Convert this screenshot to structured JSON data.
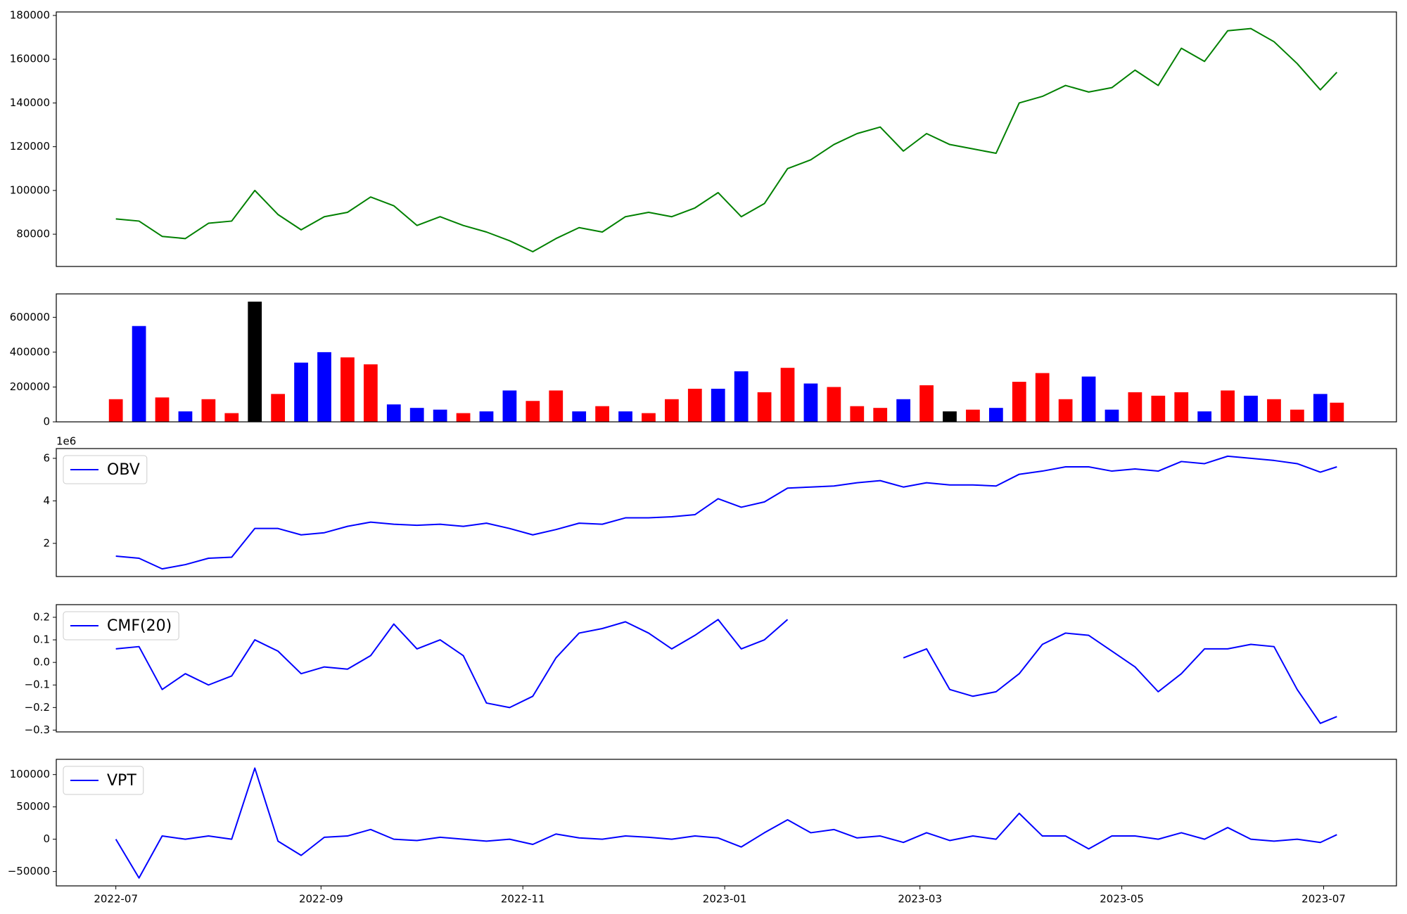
{
  "chart_data": [
    {
      "type": "line",
      "x": [
        "2022-07-01",
        "2022-07-08",
        "2022-07-15",
        "2022-07-22",
        "2022-07-29",
        "2022-08-05",
        "2022-08-12",
        "2022-08-19",
        "2022-08-26",
        "2022-09-02",
        "2022-09-09",
        "2022-09-16",
        "2022-09-23",
        "2022-09-30",
        "2022-10-07",
        "2022-10-14",
        "2022-10-21",
        "2022-10-28",
        "2022-11-04",
        "2022-11-11",
        "2022-11-18",
        "2022-11-25",
        "2022-12-02",
        "2022-12-09",
        "2022-12-16",
        "2022-12-23",
        "2022-12-30",
        "2023-01-06",
        "2023-01-13",
        "2023-01-20",
        "2023-01-27",
        "2023-02-03",
        "2023-02-10",
        "2023-02-17",
        "2023-02-24",
        "2023-03-03",
        "2023-03-10",
        "2023-03-17",
        "2023-03-24",
        "2023-03-31",
        "2023-04-07",
        "2023-04-14",
        "2023-04-21",
        "2023-04-28",
        "2023-05-05",
        "2023-05-12",
        "2023-05-19",
        "2023-05-26",
        "2023-06-02",
        "2023-06-09",
        "2023-06-16",
        "2023-06-23",
        "2023-06-30",
        "2023-07-05"
      ],
      "values": [
        87000,
        86000,
        79000,
        78000,
        85000,
        86000,
        100000,
        89000,
        82000,
        88000,
        90000,
        97000,
        93000,
        84000,
        88000,
        84000,
        81000,
        77000,
        72000,
        78000,
        83000,
        81000,
        88000,
        90000,
        88000,
        92000,
        99000,
        88000,
        94000,
        110000,
        114000,
        121000,
        126000,
        129000,
        118000,
        126000,
        121000,
        119000,
        117000,
        140000,
        143000,
        148000,
        145000,
        147000,
        155000,
        148000,
        165000,
        159000,
        173000,
        174000,
        168000,
        158000,
        146000,
        154000
      ],
      "color": "#008000",
      "xlim": [
        "2022-06-13",
        "2023-07-23"
      ],
      "ylim": [
        65250,
        181600
      ],
      "yticks": [
        80000,
        100000,
        120000,
        140000,
        160000,
        180000
      ]
    },
    {
      "type": "bar",
      "x": [
        "2022-07-01",
        "2022-07-08",
        "2022-07-15",
        "2022-07-22",
        "2022-07-29",
        "2022-08-05",
        "2022-08-12",
        "2022-08-19",
        "2022-08-26",
        "2022-09-02",
        "2022-09-09",
        "2022-09-16",
        "2022-09-23",
        "2022-09-30",
        "2022-10-07",
        "2022-10-14",
        "2022-10-21",
        "2022-10-28",
        "2022-11-04",
        "2022-11-11",
        "2022-11-18",
        "2022-11-25",
        "2022-12-02",
        "2022-12-09",
        "2022-12-16",
        "2022-12-23",
        "2022-12-30",
        "2023-01-06",
        "2023-01-13",
        "2023-01-20",
        "2023-01-27",
        "2023-02-03",
        "2023-02-10",
        "2023-02-17",
        "2023-02-24",
        "2023-03-03",
        "2023-03-10",
        "2023-03-17",
        "2023-03-24",
        "2023-03-31",
        "2023-04-07",
        "2023-04-14",
        "2023-04-21",
        "2023-04-28",
        "2023-05-05",
        "2023-05-12",
        "2023-05-19",
        "2023-05-26",
        "2023-06-02",
        "2023-06-09",
        "2023-06-16",
        "2023-06-23",
        "2023-06-30",
        "2023-07-05"
      ],
      "values": [
        130000,
        550000,
        140000,
        60000,
        130000,
        50000,
        690000,
        160000,
        340000,
        400000,
        370000,
        330000,
        100000,
        80000,
        70000,
        50000,
        60000,
        180000,
        120000,
        180000,
        60000,
        90000,
        60000,
        50000,
        130000,
        190000,
        190000,
        290000,
        170000,
        310000,
        220000,
        200000,
        90000,
        80000,
        130000,
        210000,
        60000,
        70000,
        80000,
        230000,
        280000,
        130000,
        260000,
        70000,
        170000,
        150000,
        170000,
        60000,
        180000,
        150000,
        130000,
        70000,
        160000,
        110000
      ],
      "colors": [
        "#ff0000",
        "#0000ff",
        "#ff0000",
        "#0000ff",
        "#ff0000",
        "#ff0000",
        "#000000",
        "#ff0000",
        "#0000ff",
        "#0000ff",
        "#ff0000",
        "#ff0000",
        "#0000ff",
        "#0000ff",
        "#0000ff",
        "#ff0000",
        "#0000ff",
        "#0000ff",
        "#ff0000",
        "#ff0000",
        "#0000ff",
        "#ff0000",
        "#0000ff",
        "#ff0000",
        "#ff0000",
        "#ff0000",
        "#0000ff",
        "#0000ff",
        "#ff0000",
        "#ff0000",
        "#0000ff",
        "#ff0000",
        "#ff0000",
        "#ff0000",
        "#0000ff",
        "#ff0000",
        "#000000",
        "#ff0000",
        "#0000ff",
        "#ff0000",
        "#ff0000",
        "#ff0000",
        "#0000ff",
        "#0000ff",
        "#ff0000",
        "#ff0000",
        "#ff0000",
        "#0000ff",
        "#ff0000",
        "#0000ff",
        "#ff0000",
        "#ff0000",
        "#0000ff",
        "#ff0000"
      ],
      "xlim": [
        "2022-06-13",
        "2023-07-23"
      ],
      "ylim": [
        0,
        734500
      ],
      "yticks": [
        0,
        200000,
        400000,
        600000
      ]
    },
    {
      "type": "line",
      "x": [
        "2022-07-01",
        "2022-07-08",
        "2022-07-15",
        "2022-07-22",
        "2022-07-29",
        "2022-08-05",
        "2022-08-12",
        "2022-08-19",
        "2022-08-26",
        "2022-09-02",
        "2022-09-09",
        "2022-09-16",
        "2022-09-23",
        "2022-09-30",
        "2022-10-07",
        "2022-10-14",
        "2022-10-21",
        "2022-10-28",
        "2022-11-04",
        "2022-11-11",
        "2022-11-18",
        "2022-11-25",
        "2022-12-02",
        "2022-12-09",
        "2022-12-16",
        "2022-12-23",
        "2022-12-30",
        "2023-01-06",
        "2023-01-13",
        "2023-01-20",
        "2023-01-27",
        "2023-02-03",
        "2023-02-10",
        "2023-02-17",
        "2023-02-24",
        "2023-03-03",
        "2023-03-10",
        "2023-03-17",
        "2023-03-24",
        "2023-03-31",
        "2023-04-07",
        "2023-04-14",
        "2023-04-21",
        "2023-04-28",
        "2023-05-05",
        "2023-05-12",
        "2023-05-19",
        "2023-05-26",
        "2023-06-02",
        "2023-06-09",
        "2023-06-16",
        "2023-06-23",
        "2023-06-30",
        "2023-07-05"
      ],
      "series": [
        {
          "name": "OBV",
          "color": "#0000ff",
          "values": [
            1400000,
            1300000,
            800000,
            1000000,
            1300000,
            1350000,
            2700000,
            2700000,
            2400000,
            2500000,
            2800000,
            3000000,
            2900000,
            2850000,
            2900000,
            2800000,
            2950000,
            2700000,
            2400000,
            2650000,
            2950000,
            2900000,
            3200000,
            3200000,
            3250000,
            3350000,
            4100000,
            3700000,
            3950000,
            4600000,
            4650000,
            4700000,
            4850000,
            4950000,
            4650000,
            4850000,
            4750000,
            4750000,
            4700000,
            5250000,
            5400000,
            5600000,
            5600000,
            5400000,
            5500000,
            5400000,
            5850000,
            5750000,
            6100000,
            6000000,
            5900000,
            5750000,
            5350000,
            5600000
          ]
        }
      ],
      "y_offset_label": "1e6",
      "legend": "upper left",
      "xlim": [
        "2022-06-13",
        "2023-07-23"
      ],
      "ylim": [
        440000,
        6460000
      ],
      "yticks": [
        {
          "value": 2000000,
          "label": "2"
        },
        {
          "value": 4000000,
          "label": "4"
        },
        {
          "value": 6000000,
          "label": "6"
        }
      ]
    },
    {
      "type": "line",
      "x": [
        "2022-07-01",
        "2022-07-08",
        "2022-07-15",
        "2022-07-22",
        "2022-07-29",
        "2022-08-05",
        "2022-08-12",
        "2022-08-19",
        "2022-08-26",
        "2022-09-02",
        "2022-09-09",
        "2022-09-16",
        "2022-09-23",
        "2022-09-30",
        "2022-10-07",
        "2022-10-14",
        "2022-10-21",
        "2022-10-28",
        "2022-11-04",
        "2022-11-11",
        "2022-11-18",
        "2022-11-25",
        "2022-12-02",
        "2022-12-09",
        "2022-12-16",
        "2022-12-23",
        "2022-12-30",
        "2023-01-06",
        "2023-01-13",
        "2023-01-20",
        "2023-01-27",
        "2023-02-03",
        "2023-02-10",
        "2023-02-17",
        "2023-02-24",
        "2023-03-03",
        "2023-03-10",
        "2023-03-17",
        "2023-03-24",
        "2023-03-31",
        "2023-04-07",
        "2023-04-14",
        "2023-04-21",
        "2023-04-28",
        "2023-05-05",
        "2023-05-12",
        "2023-05-19",
        "2023-05-26",
        "2023-06-02",
        "2023-06-09",
        "2023-06-16",
        "2023-06-23",
        "2023-06-30",
        "2023-07-05"
      ],
      "series": [
        {
          "name": "CMF(20)",
          "color": "#0000ff",
          "values": [
            0.06,
            0.07,
            -0.12,
            -0.05,
            -0.1,
            -0.06,
            0.1,
            0.05,
            -0.05,
            -0.02,
            -0.03,
            0.03,
            0.17,
            0.06,
            0.1,
            0.03,
            -0.18,
            -0.2,
            -0.15,
            0.02,
            0.13,
            0.15,
            0.18,
            0.13,
            0.06,
            0.12,
            0.19,
            0.06,
            0.1,
            0.19,
            null,
            null,
            null,
            null,
            0.02,
            0.06,
            -0.12,
            -0.15,
            -0.13,
            -0.05,
            0.08,
            0.13,
            0.12,
            0.05,
            -0.02,
            -0.13,
            -0.05,
            0.06,
            0.06,
            0.08,
            0.07,
            -0.12,
            -0.27,
            -0.24
          ]
        }
      ],
      "legend": "upper left",
      "xlim": [
        "2022-06-13",
        "2023-07-23"
      ],
      "ylim": [
        -0.308,
        0.256
      ],
      "yticks": [
        {
          "value": -0.3,
          "label": "−0.3"
        },
        {
          "value": -0.2,
          "label": "−0.2"
        },
        {
          "value": -0.1,
          "label": "−0.1"
        },
        {
          "value": 0,
          "label": "0.0"
        },
        0.1,
        0.2
      ]
    },
    {
      "type": "line",
      "x": [
        "2022-07-01",
        "2022-07-08",
        "2022-07-15",
        "2022-07-22",
        "2022-07-29",
        "2022-08-05",
        "2022-08-12",
        "2022-08-19",
        "2022-08-26",
        "2022-09-02",
        "2022-09-09",
        "2022-09-16",
        "2022-09-23",
        "2022-09-30",
        "2022-10-07",
        "2022-10-14",
        "2022-10-21",
        "2022-10-28",
        "2022-11-04",
        "2022-11-11",
        "2022-11-18",
        "2022-11-25",
        "2022-12-02",
        "2022-12-09",
        "2022-12-16",
        "2022-12-23",
        "2022-12-30",
        "2023-01-06",
        "2023-01-13",
        "2023-01-20",
        "2023-01-27",
        "2023-02-03",
        "2023-02-10",
        "2023-02-17",
        "2023-02-24",
        "2023-03-03",
        "2023-03-10",
        "2023-03-17",
        "2023-03-24",
        "2023-03-31",
        "2023-04-07",
        "2023-04-14",
        "2023-04-21",
        "2023-04-28",
        "2023-05-05",
        "2023-05-12",
        "2023-05-19",
        "2023-05-26",
        "2023-06-02",
        "2023-06-09",
        "2023-06-16",
        "2023-06-23",
        "2023-06-30",
        "2023-07-05"
      ],
      "series": [
        {
          "name": "VPT",
          "color": "#0000ff",
          "values": [
            0,
            -60000,
            5000,
            0,
            5000,
            0,
            110000,
            -3000,
            -25000,
            3000,
            5000,
            15000,
            0,
            -2000,
            3000,
            0,
            -3000,
            0,
            -8000,
            8000,
            2000,
            0,
            5000,
            3000,
            0,
            5000,
            2000,
            -12000,
            10000,
            30000,
            10000,
            15000,
            2000,
            5000,
            -5000,
            10000,
            -2000,
            5000,
            0,
            40000,
            5000,
            5000,
            -15000,
            5000,
            5000,
            0,
            10000,
            0,
            18000,
            0,
            -3000,
            0,
            -5000,
            7000
          ]
        }
      ],
      "legend": "upper left",
      "xlim": [
        "2022-06-13",
        "2023-07-23"
      ],
      "ylim": [
        -72200,
        123600
      ],
      "yticks": [
        {
          "value": -50000,
          "label": "−50000"
        },
        0,
        50000,
        100000
      ],
      "xticks": [
        {
          "value": "2022-07-01",
          "label": "2022-07"
        },
        {
          "value": "2022-09-01",
          "label": "2022-09"
        },
        {
          "value": "2022-11-01",
          "label": "2022-11"
        },
        {
          "value": "2023-01-01",
          "label": "2023-01"
        },
        {
          "value": "2023-03-01",
          "label": "2023-03"
        },
        {
          "value": "2023-05-01",
          "label": "2023-05"
        },
        {
          "value": "2023-07-01",
          "label": "2023-07"
        }
      ]
    }
  ]
}
